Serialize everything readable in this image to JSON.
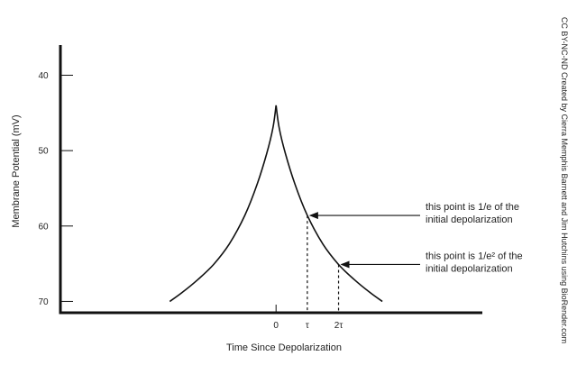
{
  "chart_data": {
    "type": "line",
    "title": "",
    "xlabel": "Time Since Depolarization",
    "ylabel": "Membrane Potential (mV)",
    "y_ticks": [
      "40",
      "50",
      "60",
      "70"
    ],
    "y_tick_values": [
      40,
      50,
      60,
      70
    ],
    "x_ticks": [
      "0",
      "τ",
      "2τ"
    ],
    "x_tick_values": [
      0,
      1,
      2
    ],
    "ylim": [
      36,
      71.5
    ],
    "xlim": [
      -6.9,
      6.6
    ],
    "y_inverted": true,
    "grid": false,
    "series": [
      {
        "x": [
          -3.4,
          -3.0,
          -2.5,
          -2.0,
          -1.5,
          -1.0,
          -0.6,
          -0.3,
          -0.1,
          0,
          0.1,
          0.3,
          0.6,
          1.0,
          1.5,
          2.0,
          2.5,
          3.0,
          3.4
        ],
        "y": [
          70.0,
          68.8,
          67.1,
          65.1,
          62.4,
          58.6,
          54.4,
          50.4,
          47.0,
          44.0,
          47.0,
          50.4,
          54.4,
          58.6,
          62.4,
          65.1,
          67.1,
          68.8,
          70.0
        ]
      }
    ],
    "annotations": [
      {
        "text_lines": [
          "this point is 1/e of the",
          "initial depolarization"
        ],
        "x": 1,
        "y": 58.6
      },
      {
        "text_lines": [
          "this point is 1/e² of the",
          "initial depolarization"
        ],
        "x": 2,
        "y": 65.1
      }
    ]
  },
  "credit": "CC BY-NC-ND Created by Cierra Memphis Barnett and Jim Hutchins using BioRender.com",
  "colors": {
    "line": "#111111",
    "axis": "#111111",
    "text": "#222222"
  }
}
